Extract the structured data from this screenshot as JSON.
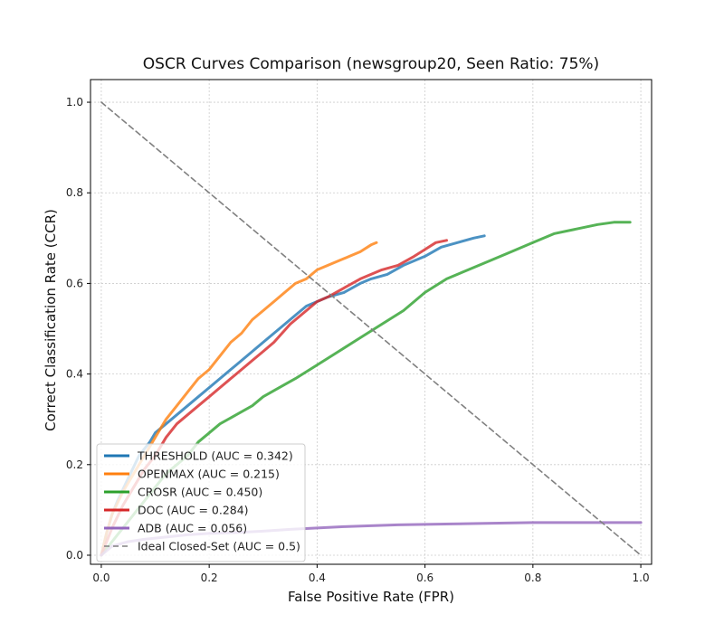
{
  "chart_data": {
    "type": "line",
    "title": "OSCR Curves Comparison (newsgroup20, Seen Ratio: 75%)",
    "xlabel": "False Positive Rate (FPR)",
    "ylabel": "Correct Classification Rate (CCR)",
    "xlim": [
      -0.02,
      1.02
    ],
    "ylim": [
      -0.02,
      1.05
    ],
    "xticks": [
      0.0,
      0.2,
      0.4,
      0.6,
      0.8,
      1.0
    ],
    "yticks": [
      0.0,
      0.2,
      0.4,
      0.6,
      0.8,
      1.0
    ],
    "xtick_labels": [
      "0.0",
      "0.2",
      "0.4",
      "0.6",
      "0.8",
      "1.0"
    ],
    "ytick_labels": [
      "0.0",
      "0.2",
      "0.4",
      "0.6",
      "0.8",
      "1.0"
    ],
    "grid": true,
    "legend_position": "lower-left",
    "series": [
      {
        "name": "THRESHOLD (AUC = 0.342)",
        "color": "#1f77b4",
        "style": "solid",
        "x": [
          0,
          0.01,
          0.02,
          0.03,
          0.05,
          0.07,
          0.09,
          0.1,
          0.12,
          0.14,
          0.16,
          0.18,
          0.2,
          0.22,
          0.25,
          0.28,
          0.3,
          0.33,
          0.36,
          0.38,
          0.4,
          0.42,
          0.45,
          0.48,
          0.5,
          0.53,
          0.56,
          0.6,
          0.63,
          0.66,
          0.69,
          0.71
        ],
        "y": [
          0,
          0.05,
          0.09,
          0.12,
          0.17,
          0.22,
          0.25,
          0.27,
          0.29,
          0.31,
          0.33,
          0.35,
          0.37,
          0.39,
          0.42,
          0.45,
          0.47,
          0.5,
          0.53,
          0.55,
          0.56,
          0.57,
          0.58,
          0.6,
          0.61,
          0.62,
          0.64,
          0.66,
          0.68,
          0.69,
          0.7,
          0.705
        ]
      },
      {
        "name": "OPENMAX (AUC = 0.215)",
        "color": "#ff7f0e",
        "style": "solid",
        "x": [
          0,
          0.01,
          0.02,
          0.04,
          0.06,
          0.08,
          0.1,
          0.12,
          0.14,
          0.16,
          0.18,
          0.2,
          0.22,
          0.24,
          0.26,
          0.28,
          0.3,
          0.32,
          0.34,
          0.36,
          0.38,
          0.4,
          0.42,
          0.44,
          0.46,
          0.48,
          0.5,
          0.51
        ],
        "y": [
          0,
          0.05,
          0.09,
          0.14,
          0.18,
          0.22,
          0.26,
          0.3,
          0.33,
          0.36,
          0.39,
          0.41,
          0.44,
          0.47,
          0.49,
          0.52,
          0.54,
          0.56,
          0.58,
          0.6,
          0.61,
          0.63,
          0.64,
          0.65,
          0.66,
          0.67,
          0.685,
          0.69
        ]
      },
      {
        "name": "CROSR (AUC = 0.450)",
        "color": "#2ca02c",
        "style": "solid",
        "x": [
          0,
          0.02,
          0.04,
          0.06,
          0.08,
          0.1,
          0.12,
          0.14,
          0.16,
          0.18,
          0.2,
          0.22,
          0.25,
          0.28,
          0.3,
          0.33,
          0.36,
          0.4,
          0.44,
          0.48,
          0.52,
          0.56,
          0.6,
          0.64,
          0.68,
          0.72,
          0.76,
          0.8,
          0.84,
          0.88,
          0.92,
          0.95,
          0.98
        ],
        "y": [
          0,
          0.03,
          0.06,
          0.09,
          0.12,
          0.15,
          0.18,
          0.2,
          0.22,
          0.25,
          0.27,
          0.29,
          0.31,
          0.33,
          0.35,
          0.37,
          0.39,
          0.42,
          0.45,
          0.48,
          0.51,
          0.54,
          0.58,
          0.61,
          0.63,
          0.65,
          0.67,
          0.69,
          0.71,
          0.72,
          0.73,
          0.735,
          0.735
        ]
      },
      {
        "name": "DOC (AUC = 0.284)",
        "color": "#d62728",
        "style": "solid",
        "x": [
          0,
          0.02,
          0.04,
          0.06,
          0.08,
          0.1,
          0.12,
          0.14,
          0.16,
          0.18,
          0.2,
          0.22,
          0.25,
          0.28,
          0.3,
          0.32,
          0.35,
          0.38,
          0.4,
          0.42,
          0.45,
          0.48,
          0.5,
          0.52,
          0.55,
          0.58,
          0.6,
          0.62,
          0.64
        ],
        "y": [
          0,
          0.06,
          0.11,
          0.15,
          0.19,
          0.22,
          0.26,
          0.29,
          0.31,
          0.33,
          0.35,
          0.37,
          0.4,
          0.43,
          0.45,
          0.47,
          0.51,
          0.54,
          0.56,
          0.57,
          0.59,
          0.61,
          0.62,
          0.63,
          0.64,
          0.66,
          0.675,
          0.69,
          0.695
        ]
      },
      {
        "name": "ADB (AUC = 0.056)",
        "color": "#9467bd",
        "style": "solid",
        "x": [
          0,
          0.02,
          0.05,
          0.08,
          0.12,
          0.16,
          0.2,
          0.25,
          0.3,
          0.35,
          0.4,
          0.45,
          0.5,
          0.55,
          0.6,
          0.65,
          0.7,
          0.75,
          0.8,
          0.85,
          0.9,
          0.95,
          1.0
        ],
        "y": [
          0,
          0.02,
          0.03,
          0.035,
          0.04,
          0.045,
          0.048,
          0.05,
          0.053,
          0.057,
          0.06,
          0.063,
          0.065,
          0.067,
          0.068,
          0.069,
          0.07,
          0.071,
          0.072,
          0.072,
          0.072,
          0.072,
          0.072
        ]
      },
      {
        "name": "Ideal Closed-Set (AUC = 0.5)",
        "color": "#808080",
        "style": "dashed",
        "x": [
          0,
          1
        ],
        "y": [
          1,
          0
        ]
      }
    ]
  }
}
